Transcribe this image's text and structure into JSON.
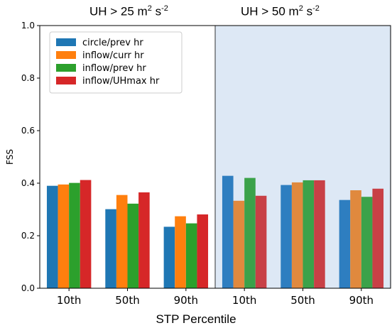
{
  "titles": {
    "left": {
      "text": "UH > 25 m",
      "sup1": "2",
      "mid": " s",
      "sup2": "-2"
    },
    "right": {
      "text": "UH > 50 m",
      "sup1": "2",
      "mid": " s",
      "sup2": "-2"
    }
  },
  "chart_data": {
    "type": "bar",
    "ylabel": "FSS",
    "xlabel": "STP Percentile",
    "ylim": [
      0.0,
      1.0
    ],
    "yticks": [
      "0.0",
      "0.2",
      "0.4",
      "0.6",
      "0.8",
      "1.0"
    ],
    "categories": [
      "10th",
      "50th",
      "90th",
      "10th",
      "50th",
      "90th"
    ],
    "shaded_categories": [
      3,
      4,
      5
    ],
    "shade_color": "#dde8f5",
    "legend_position": "top-left",
    "series": [
      {
        "name": "circle/prev hr",
        "color": "#1f77b4",
        "values": [
          0.39,
          0.301,
          0.234,
          0.428,
          0.393,
          0.336
        ]
      },
      {
        "name": "inflow/curr hr",
        "color": "#ff7f0e",
        "values": [
          0.395,
          0.355,
          0.274,
          0.333,
          0.403,
          0.373
        ]
      },
      {
        "name": "inflow/prev hr",
        "color": "#2ca02c",
        "values": [
          0.401,
          0.322,
          0.247,
          0.42,
          0.411,
          0.348
        ]
      },
      {
        "name": "inflow/UHmax hr",
        "color": "#d62728",
        "values": [
          0.412,
          0.365,
          0.281,
          0.352,
          0.411,
          0.379
        ]
      }
    ],
    "shaded_series_colors": [
      "#2e7ec0",
      "#e0893e",
      "#3ba24a",
      "#c84046"
    ]
  }
}
